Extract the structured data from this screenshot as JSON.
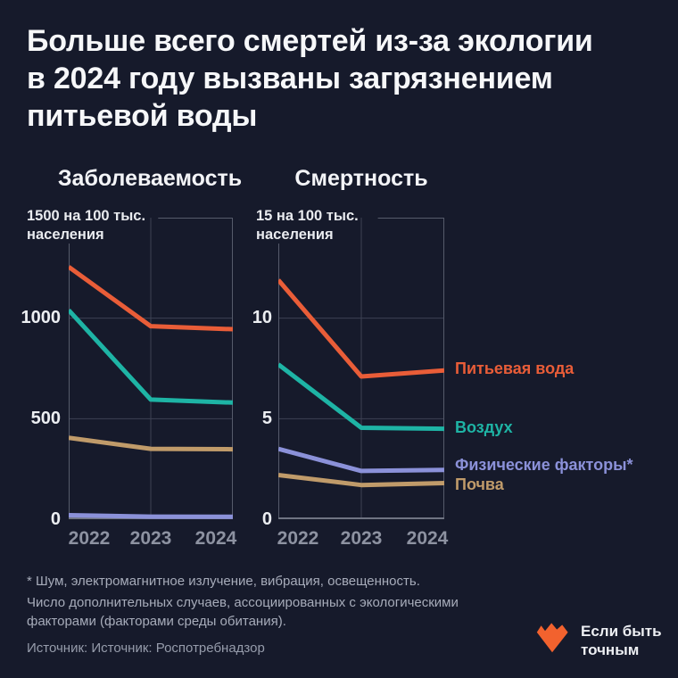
{
  "page": {
    "title": "Больше всего смертей из-за экологии\nв 2024 году вызваны загрязнением\nпитьевой воды",
    "background": "#161a2b"
  },
  "chart_data": [
    {
      "type": "line",
      "title": "Заболеваемость",
      "unit_label": "1500 на 100 тыс.\nнаселения",
      "categories": [
        "2022",
        "2023",
        "2024"
      ],
      "ylim": [
        0,
        1500
      ],
      "yticks": [
        0,
        500,
        1000
      ],
      "ytick_labels": [
        "0",
        "500",
        "1000"
      ],
      "grid": "on",
      "legend_position": "none",
      "series": [
        {
          "name": "Питьевая вода",
          "color": "#e95d38",
          "values": [
            1255,
            960,
            945
          ]
        },
        {
          "name": "Воздух",
          "color": "#1eb4a5",
          "values": [
            1040,
            595,
            580
          ]
        },
        {
          "name": "Почва",
          "color": "#c09b6a",
          "values": [
            405,
            350,
            348
          ]
        },
        {
          "name": "Физические факторы",
          "color": "#8b91d9",
          "values": [
            20,
            13,
            12
          ]
        }
      ]
    },
    {
      "type": "line",
      "title": "Смертность",
      "unit_label": "15 на 100 тыс.\nнаселения",
      "categories": [
        "2022",
        "2023",
        "2024"
      ],
      "ylim": [
        0,
        15
      ],
      "yticks": [
        0,
        5,
        10
      ],
      "ytick_labels": [
        "0",
        "5",
        "10"
      ],
      "grid": "on",
      "legend_position": "right",
      "series": [
        {
          "name": "Питьевая вода",
          "color": "#e95d38",
          "values": [
            11.9,
            7.1,
            7.4
          ]
        },
        {
          "name": "Воздух",
          "color": "#1eb4a5",
          "values": [
            7.7,
            4.55,
            4.5
          ]
        },
        {
          "name": "Физические факторы",
          "color": "#8b91d9",
          "values": [
            3.5,
            2.4,
            2.45
          ]
        },
        {
          "name": "Почва",
          "color": "#c09b6a",
          "values": [
            2.2,
            1.7,
            1.8
          ]
        }
      ]
    }
  ],
  "legend": [
    {
      "label": "Питьевая вода",
      "color": "#e95d38"
    },
    {
      "label": "Воздух",
      "color": "#1eb4a5"
    },
    {
      "label": "Физические факторы*",
      "color": "#8b91d9"
    },
    {
      "label": "Почва",
      "color": "#c09b6a"
    }
  ],
  "footnotes": {
    "asterisk_note": "* Шум, электромагнитное излучение, вибрация, освещенность.",
    "method_note": "Число дополнительных случаев, ассоциированных с экологическими\nфакторами (факторами среды обитания).",
    "source": "Источник: Источник: Роспотребнадзор"
  },
  "logo": {
    "text": "Если быть\nточным",
    "heart_color": "#f2622e"
  },
  "theme": {
    "grid_line": "#3d4253",
    "border_line": "#565b6b",
    "axis_line": "#6f7482",
    "tick_gray": "#8d92a1"
  }
}
